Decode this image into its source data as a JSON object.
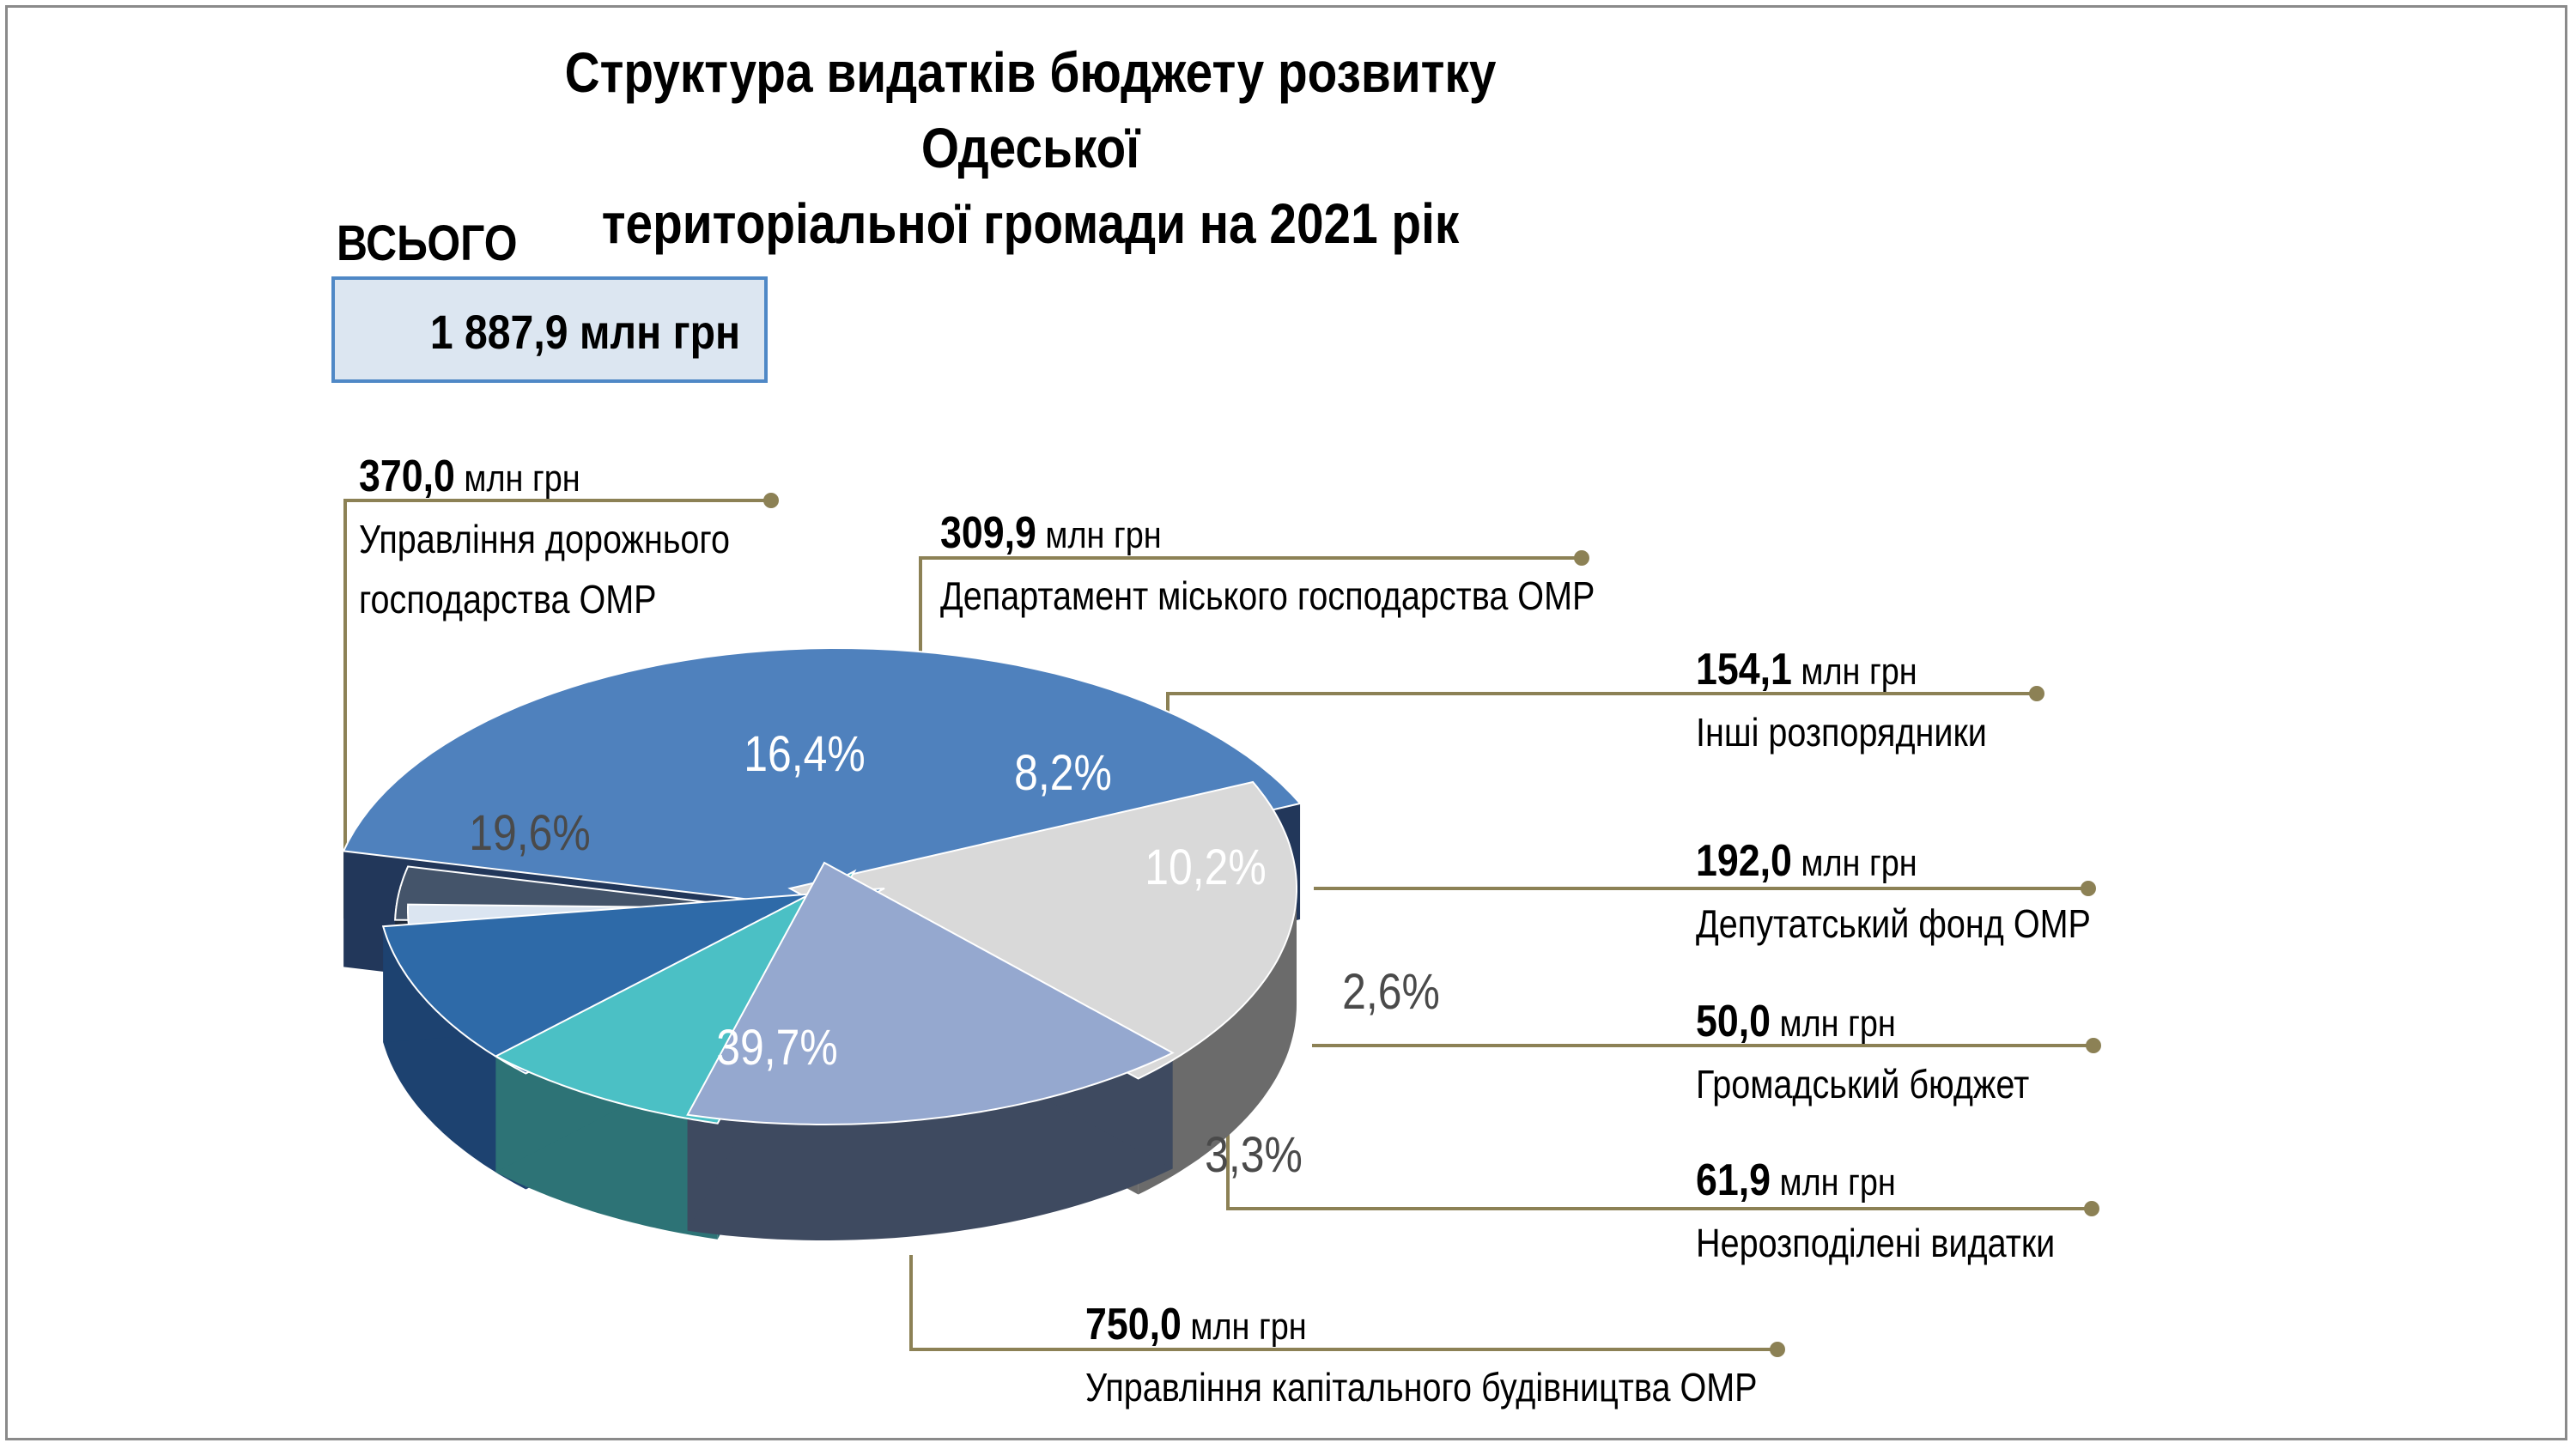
{
  "title": {
    "line1": "Структура видатків бюджету розвитку Одеської",
    "line2": "територіальної громади на 2021 рік"
  },
  "total": {
    "label": "ВСЬОГО",
    "value": "1 887,9 млн грн"
  },
  "chart_data": {
    "type": "pie",
    "style": "3d-exploded",
    "unit": "млн грн",
    "slices": [
      {
        "label": "Управління капітального будівництва ОМР",
        "value": 750.0,
        "value_text": "750,0",
        "percent": 39.7,
        "percent_text": "39,7%",
        "color": "#4f81bd"
      },
      {
        "label": "Управління дорожнього господарства ОМР",
        "value": 370.0,
        "value_text": "370,0",
        "percent": 19.6,
        "percent_text": "19,6%",
        "color": "#d9d9d9"
      },
      {
        "label": "Департамент міського господарства ОМР",
        "value": 309.9,
        "value_text": "309,9",
        "percent": 16.4,
        "percent_text": "16,4%",
        "color": "#95a8cf"
      },
      {
        "label": "Інші розпорядники",
        "value": 154.1,
        "value_text": "154,1",
        "percent": 8.2,
        "percent_text": "8,2%",
        "color": "#4bc0c5"
      },
      {
        "label": "Депутатський фонд ОМР",
        "value": 192.0,
        "value_text": "192,0",
        "percent": 10.2,
        "percent_text": "10,2%",
        "color": "#2e6aa8"
      },
      {
        "label": "Громадський бюджет",
        "value": 50.0,
        "value_text": "50,0",
        "percent": 2.6,
        "percent_text": "2,6%",
        "color": "#dbe5f1"
      },
      {
        "label": "Нерозподілені видатки",
        "value": 61.9,
        "value_text": "61,9",
        "percent": 3.3,
        "percent_text": "3,3%",
        "color": "#44546a"
      }
    ],
    "leader_line_color": "#8c8155"
  }
}
